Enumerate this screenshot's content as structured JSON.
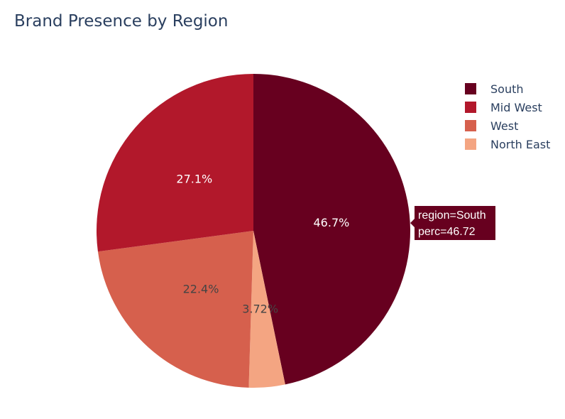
{
  "chart_data": {
    "type": "pie",
    "title": "Brand Presence by Region",
    "slices": [
      {
        "label": "South",
        "value": 46.72,
        "display": "46.7%",
        "color": "#67001f",
        "label_color": "#ffffff"
      },
      {
        "label": "North East",
        "value": 3.72,
        "display": "3.72%",
        "color": "#f4a582",
        "label_color": "#444444"
      },
      {
        "label": "West",
        "value": 22.4,
        "display": "22.4%",
        "color": "#d6604d",
        "label_color": "#444444"
      },
      {
        "label": "Mid West",
        "value": 27.1,
        "display": "27.1%",
        "color": "#b2182b",
        "label_color": "#ffffff"
      }
    ],
    "legend": {
      "placement": "top-right",
      "entries": [
        {
          "label": "South",
          "color": "#67001f"
        },
        {
          "label": "Mid West",
          "color": "#b2182b"
        },
        {
          "label": "West",
          "color": "#d6604d"
        },
        {
          "label": "North East",
          "color": "#f4a582"
        }
      ]
    },
    "tooltip": {
      "line1": "region=South",
      "line2": "perc=46.72",
      "color": "#67001f"
    }
  }
}
